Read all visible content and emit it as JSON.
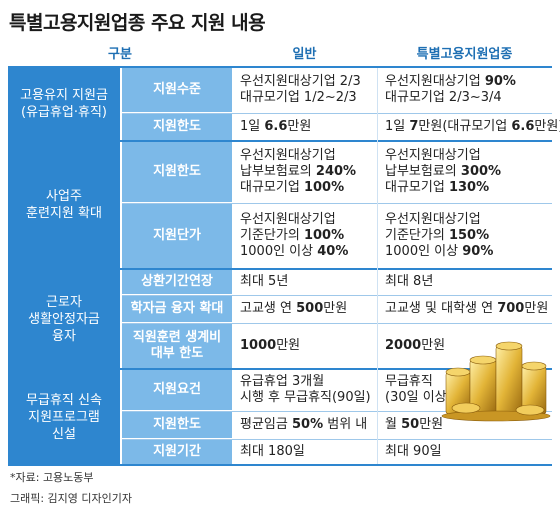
{
  "title": "특별고용지원업종 주요 지원 내용",
  "header": {
    "col1": "구분",
    "col2": "일반",
    "col3": "특별고용지원업종"
  },
  "sections": [
    {
      "category": [
        "고용유지 지원금",
        "(유급휴업·휴직)"
      ],
      "rows": [
        {
          "label": [
            "지원수준"
          ],
          "general": [
            "우선지원대상기업 2/3",
            "대규모기업 1/2~2/3"
          ],
          "special": [
            "우선지원대상기업 ",
            "90%",
            "대규모기업 2/3~3/4"
          ]
        },
        {
          "label": [
            "지원한도"
          ],
          "general": [
            "1일 ",
            "6.6",
            "만원"
          ],
          "special": [
            "1일 ",
            "7",
            "만원(대규모기업 ",
            "6.6",
            "만원)"
          ]
        }
      ]
    },
    {
      "category": [
        "사업주",
        "훈련지원 확대"
      ],
      "rows": [
        {
          "label": [
            "지원한도"
          ],
          "general": [
            "우선지원대상기업",
            "납부보험료의 ",
            "240%",
            "대규모기업 ",
            "100%"
          ],
          "special": [
            "우선지원대상기업",
            "납부보험료의 ",
            "300%",
            "대규모기업 ",
            "130%"
          ]
        },
        {
          "label": [
            "지원단가"
          ],
          "general": [
            "우선지원대상기업",
            "기준단가의 ",
            "100%",
            "1000인 이상 ",
            "40%"
          ],
          "special": [
            "우선지원대상기업",
            "기준단가의 ",
            "150%",
            "1000인 이상 ",
            "90%"
          ]
        }
      ]
    },
    {
      "category": [
        "근로자",
        "생활안정자금",
        "융자"
      ],
      "rows": [
        {
          "label": [
            "상환기간연장"
          ],
          "general": [
            "최대 5년"
          ],
          "special": [
            "최대 8년"
          ]
        },
        {
          "label": [
            "학자금 융자 확대"
          ],
          "general": [
            "고교생 연 ",
            "500",
            "만원"
          ],
          "special": [
            "고교생 및 대학생 연 ",
            "700",
            "만원"
          ]
        },
        {
          "label": [
            "직원훈련 생계비",
            "대부 한도"
          ],
          "general": [
            "1000",
            "만원"
          ],
          "special": [
            "2000",
            "만원"
          ]
        }
      ]
    },
    {
      "category": [
        "무급휴직 신속",
        "지원프로그램",
        "신설"
      ],
      "rows": [
        {
          "label": [
            "지원요건"
          ],
          "general": [
            "유급휴업 3개월",
            "시행 후 무급휴직(90일)"
          ],
          "special": [
            "무급휴직",
            "(30일 이상)"
          ]
        },
        {
          "label": [
            "지원한도"
          ],
          "general": [
            "평균임금 ",
            "50%",
            " 범위 내"
          ],
          "special": [
            "월 ",
            "50",
            "만원"
          ]
        },
        {
          "label": [
            "지원기간"
          ],
          "general": [
            "최대 180일"
          ],
          "special": [
            "최대 90일"
          ]
        }
      ]
    }
  ],
  "source": "*자료: 고용노동부",
  "credit": "그래픽: 김지영 디자인기자",
  "colors": {
    "category_bg": "#2e86cf",
    "subcategory_bg": "#7cb9e8",
    "header_text": "#1e6fb3"
  }
}
